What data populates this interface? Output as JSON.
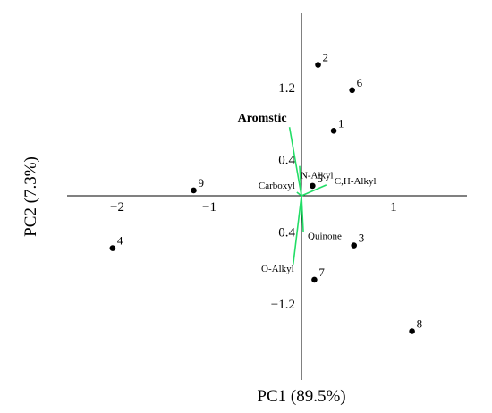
{
  "chart_data": {
    "type": "scatter",
    "title": "",
    "xlabel": "PC1 (89.5%)",
    "ylabel": "PC2 (7.3%)",
    "xlim": [
      -2.5,
      1.5
    ],
    "ylim": [
      -1.85,
      1.95
    ],
    "x_ticks": [
      {
        "value": -2,
        "label": "−2"
      },
      {
        "value": -1,
        "label": "−1"
      },
      {
        "value": 1,
        "label": "1"
      }
    ],
    "y_ticks": [
      {
        "value": 1.2,
        "label": "1.2"
      },
      {
        "value": 0.4,
        "label": "0.4"
      },
      {
        "value": -0.4,
        "label": "−0.4"
      },
      {
        "value": -1.2,
        "label": "−1.2"
      }
    ],
    "grid": false,
    "points": [
      {
        "label": "1",
        "x": 0.35,
        "y": 0.72
      },
      {
        "label": "2",
        "x": 0.18,
        "y": 1.45
      },
      {
        "label": "3",
        "x": 0.57,
        "y": -0.55
      },
      {
        "label": "4",
        "x": -2.05,
        "y": -0.58
      },
      {
        "label": "5",
        "x": 0.12,
        "y": 0.11
      },
      {
        "label": "6",
        "x": 0.55,
        "y": 1.17
      },
      {
        "label": "7",
        "x": 0.14,
        "y": -0.93
      },
      {
        "label": "8",
        "x": 1.2,
        "y": -1.5
      },
      {
        "label": "9",
        "x": -1.17,
        "y": 0.06
      }
    ],
    "loadings": [
      {
        "name": "Aromstic",
        "x": -0.13,
        "y": 0.76
      },
      {
        "name": "N-Alkyl",
        "x": -0.02,
        "y": 0.33
      },
      {
        "name": "C,H-Alkyl",
        "x": 0.27,
        "y": 0.12
      },
      {
        "name": "Carboxyl",
        "x": -0.05,
        "y": 0.04
      },
      {
        "name": "Quinone",
        "x": 0.02,
        "y": -0.4
      },
      {
        "name": "O-Alkyl",
        "x": -0.09,
        "y": -0.76
      }
    ],
    "loading_color": "#22dd66",
    "point_color": "#000000"
  }
}
